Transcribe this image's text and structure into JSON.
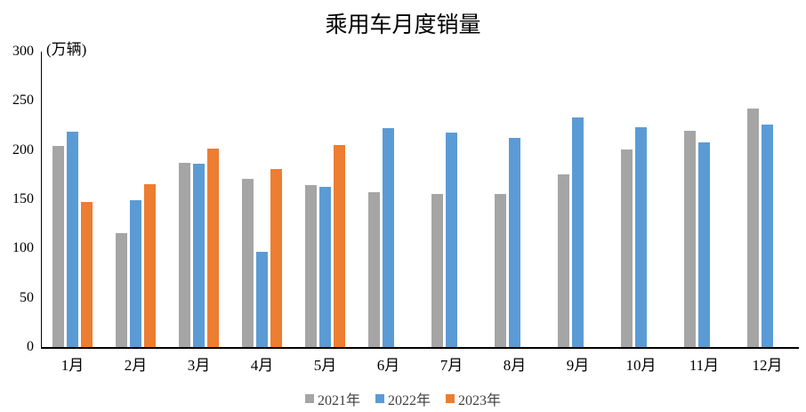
{
  "chart_data": {
    "type": "bar",
    "title": "乘用车月度销量",
    "y_axis_unit": "(万辆)",
    "categories": [
      "1月",
      "2月",
      "3月",
      "4月",
      "5月",
      "6月",
      "7月",
      "8月",
      "9月",
      "10月",
      "11月",
      "12月"
    ],
    "series": [
      {
        "name": "2021年",
        "color": "#A5A5A5",
        "values": [
          204.5,
          115.6,
          187.4,
          170.4,
          164.6,
          156.8,
          155.1,
          155.2,
          175.1,
          200.7,
          219.2,
          242.2
        ]
      },
      {
        "name": "2022年",
        "color": "#5B9BD5",
        "values": [
          218.6,
          148.7,
          186.4,
          96.5,
          162.3,
          222.2,
          217.4,
          212.5,
          233.2,
          223.1,
          207.5,
          226.3
        ]
      },
      {
        "name": "2023年",
        "color": "#ED7D31",
        "values": [
          146.9,
          165.3,
          201.7,
          181.1,
          205.1,
          null,
          null,
          null,
          null,
          null,
          null,
          null
        ]
      }
    ],
    "ylim": [
      0,
      300
    ],
    "ytick_step": 50,
    "ytick_labels": [
      "300",
      "250",
      "200",
      "150",
      "100",
      "50",
      "0"
    ],
    "grid": false,
    "legend_position": "bottom",
    "axis_color": "#000000",
    "background_color": "#FFFFFF"
  }
}
